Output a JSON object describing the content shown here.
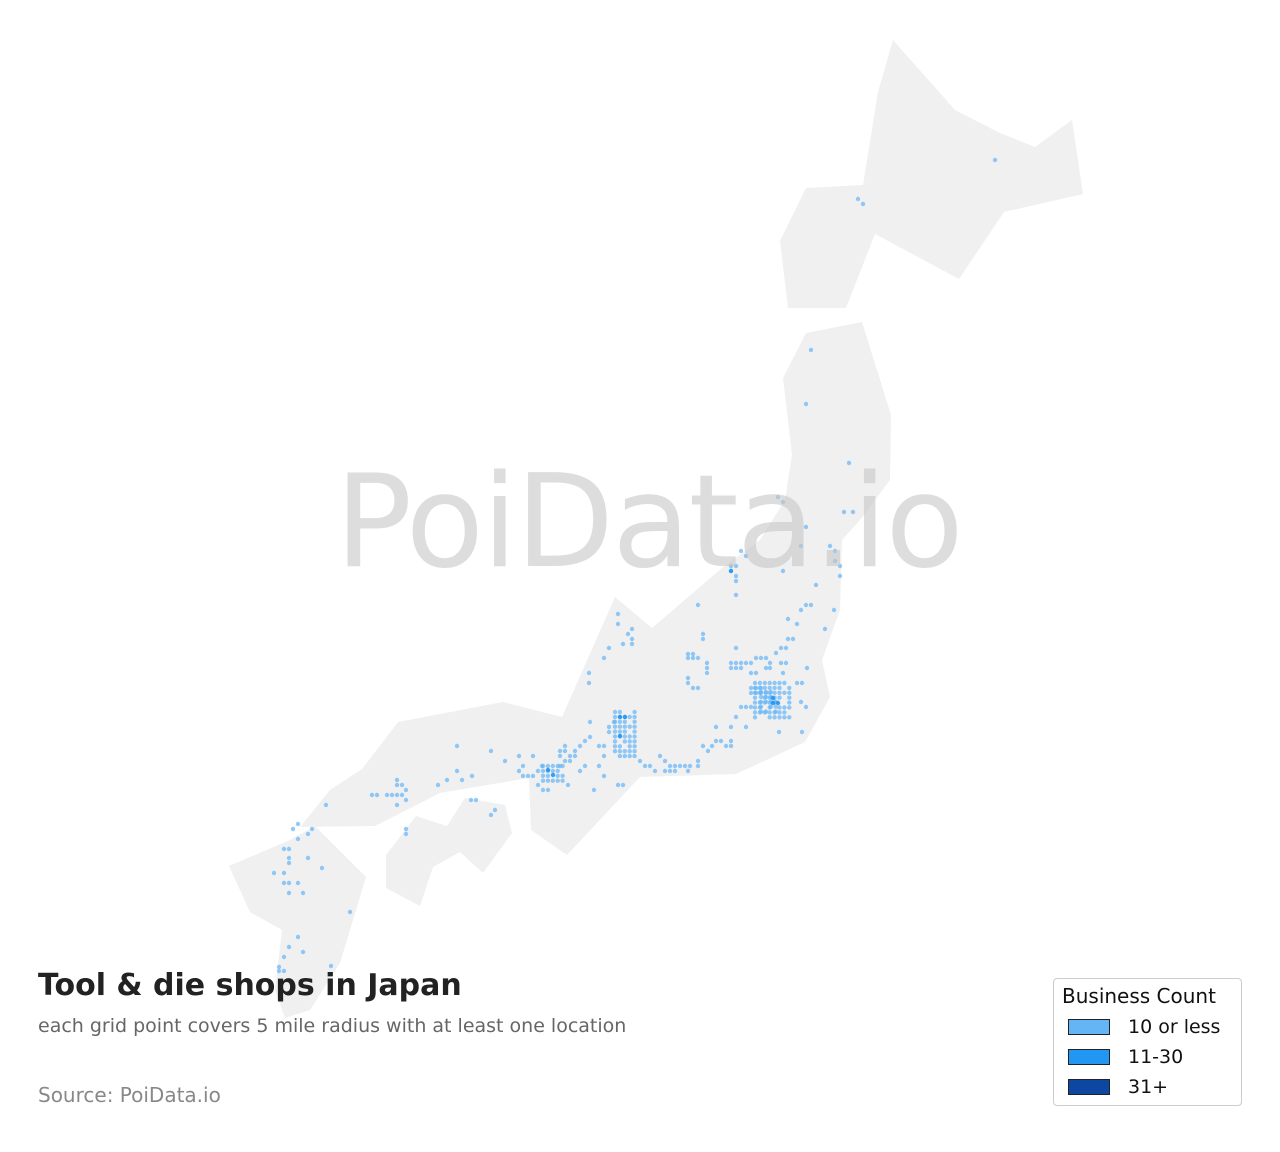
{
  "watermark": "PoiData.io",
  "title": "Tool & die shops in Japan",
  "subtitle": "each grid point covers 5 mile radius with at least one location",
  "source": "Source: PoiData.io",
  "legend": {
    "title": "Business Count",
    "items": [
      {
        "label": "10 or less",
        "color": "#64b5f6"
      },
      {
        "label": "11-30",
        "color": "#2196f3"
      },
      {
        "label": "31+",
        "color": "#0d47a1"
      }
    ]
  },
  "colors": {
    "land": "#f0f0f0",
    "dot": "#64b5f6"
  }
}
